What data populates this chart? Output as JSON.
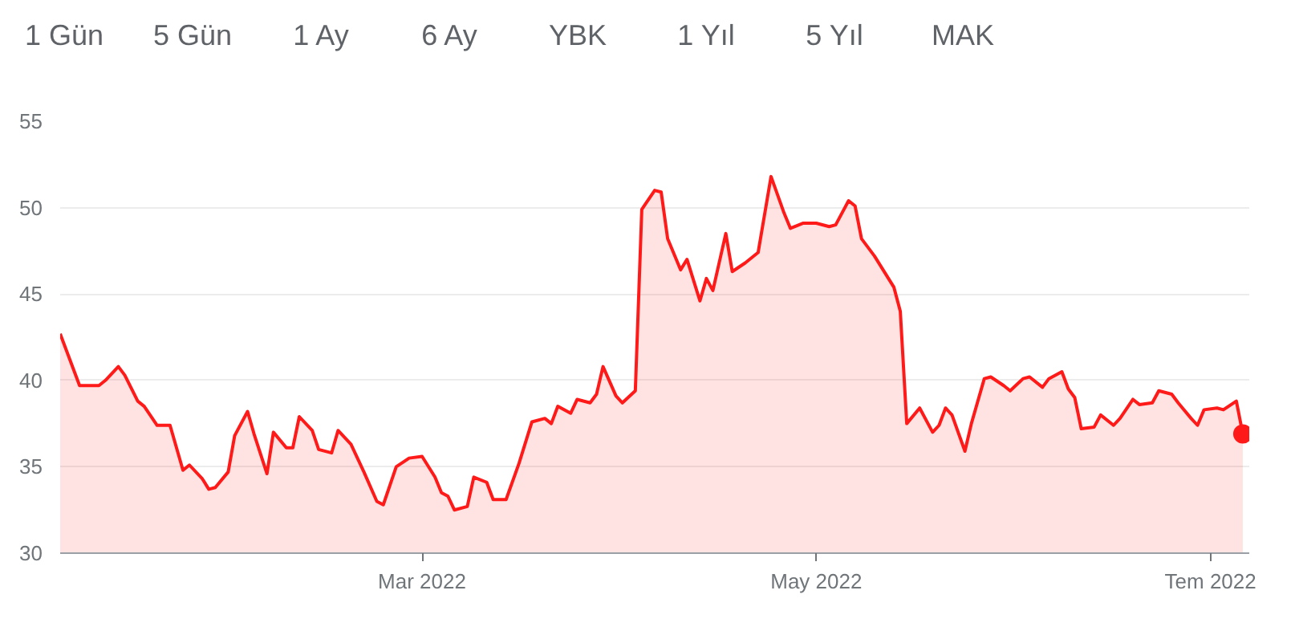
{
  "chart_data": {
    "type": "area",
    "annotations": [
      "1 Gün",
      "5 Gün",
      "1 Ay",
      "6 Ay",
      "YBK",
      "1 Yıl",
      "5 Yıl",
      "MAK"
    ],
    "xlim": [
      "2022-01-04",
      "2022-07-07"
    ],
    "xticks": [
      {
        "value": "2022-03-01",
        "label": "Mar 2022"
      },
      {
        "value": "2022-05-01",
        "label": "May 2022"
      },
      {
        "value": "2022-07-01",
        "label": "Tem 2022"
      }
    ],
    "ylim": [
      30,
      55
    ],
    "yticks": [
      30,
      35,
      40,
      45,
      50,
      55
    ],
    "grid": "y",
    "series": [
      {
        "color": "#ff1a1a",
        "x": [
          "2022-01-04",
          "2022-01-07",
          "2022-01-10",
          "2022-01-11",
          "2022-01-13",
          "2022-01-14",
          "2022-01-16",
          "2022-01-17",
          "2022-01-19",
          "2022-01-21",
          "2022-01-23",
          "2022-01-24",
          "2022-01-26",
          "2022-01-27",
          "2022-01-28",
          "2022-01-30",
          "2022-01-31",
          "2022-02-02",
          "2022-02-03",
          "2022-02-05",
          "2022-02-06",
          "2022-02-08",
          "2022-02-09",
          "2022-02-10",
          "2022-02-12",
          "2022-02-13",
          "2022-02-15",
          "2022-02-16",
          "2022-02-18",
          "2022-02-19",
          "2022-02-20",
          "2022-02-22",
          "2022-02-23",
          "2022-02-25",
          "2022-02-27",
          "2022-03-01",
          "2022-03-03",
          "2022-03-04",
          "2022-03-05",
          "2022-03-06",
          "2022-03-08",
          "2022-03-09",
          "2022-03-11",
          "2022-03-12",
          "2022-03-14",
          "2022-03-16",
          "2022-03-18",
          "2022-03-20",
          "2022-03-21",
          "2022-03-22",
          "2022-03-24",
          "2022-03-25",
          "2022-03-27",
          "2022-03-28",
          "2022-03-29",
          "2022-03-31",
          "2022-04-01",
          "2022-04-03",
          "2022-04-04",
          "2022-04-06",
          "2022-04-07",
          "2022-04-08",
          "2022-04-10",
          "2022-04-11",
          "2022-04-13",
          "2022-04-14",
          "2022-04-15",
          "2022-04-17",
          "2022-04-18",
          "2022-04-20",
          "2022-04-22",
          "2022-04-24",
          "2022-04-26",
          "2022-04-27",
          "2022-04-29",
          "2022-05-01",
          "2022-05-03",
          "2022-05-04",
          "2022-05-06",
          "2022-05-07",
          "2022-05-08",
          "2022-05-10",
          "2022-05-13",
          "2022-05-14",
          "2022-05-15",
          "2022-05-17",
          "2022-05-19",
          "2022-05-20",
          "2022-05-21",
          "2022-05-22",
          "2022-05-24",
          "2022-05-25",
          "2022-05-27",
          "2022-05-28",
          "2022-05-30",
          "2022-05-31",
          "2022-06-02",
          "2022-06-03",
          "2022-06-05",
          "2022-06-06",
          "2022-06-08",
          "2022-06-09",
          "2022-06-10",
          "2022-06-11",
          "2022-06-13",
          "2022-06-14",
          "2022-06-16",
          "2022-06-17",
          "2022-06-19",
          "2022-06-20",
          "2022-06-22",
          "2022-06-23",
          "2022-06-25",
          "2022-06-26",
          "2022-06-28",
          "2022-06-29",
          "2022-06-30",
          "2022-07-02",
          "2022-07-03",
          "2022-07-05",
          "2022-07-06"
        ],
        "values": [
          42.7,
          39.7,
          39.7,
          40.0,
          40.8,
          40.3,
          38.8,
          38.5,
          37.4,
          37.4,
          34.8,
          35.1,
          34.3,
          33.7,
          33.8,
          34.7,
          36.8,
          38.2,
          36.9,
          34.6,
          37.0,
          36.1,
          36.1,
          37.9,
          37.1,
          36.0,
          35.8,
          37.1,
          36.3,
          35.5,
          34.7,
          33.0,
          32.8,
          35.0,
          35.5,
          35.6,
          34.4,
          33.5,
          33.3,
          32.5,
          32.7,
          34.4,
          34.1,
          33.1,
          33.1,
          35.2,
          37.6,
          37.8,
          37.5,
          38.5,
          38.1,
          38.9,
          38.7,
          39.2,
          40.8,
          39.1,
          38.7,
          39.4,
          49.9,
          51.0,
          50.9,
          48.2,
          46.4,
          47.0,
          44.6,
          45.9,
          45.2,
          48.5,
          46.3,
          46.8,
          47.4,
          51.8,
          49.7,
          48.8,
          49.1,
          49.1,
          48.9,
          49.0,
          50.4,
          50.1,
          48.2,
          47.2,
          45.4,
          44.0,
          37.5,
          38.4,
          37.0,
          37.4,
          38.4,
          38.0,
          35.9,
          37.5,
          40.1,
          40.2,
          39.7,
          39.4,
          40.1,
          40.2,
          39.6,
          40.1,
          40.5,
          39.5,
          39.0,
          37.2,
          37.3,
          38.0,
          37.4,
          37.8,
          38.9,
          38.6,
          38.7,
          39.4,
          39.2,
          38.7,
          37.8,
          37.4,
          38.3,
          38.4,
          38.3,
          38.8,
          36.9
        ]
      },
      {
        "type": "scatter",
        "color": "#ff1a1a",
        "marker": "circle",
        "x": [
          "2022-07-06"
        ],
        "values": [
          36.9
        ]
      }
    ]
  }
}
